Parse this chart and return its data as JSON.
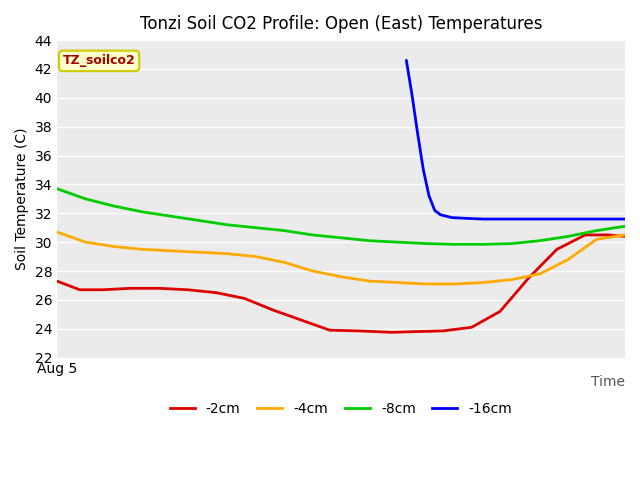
{
  "title": "Tonzi Soil CO2 Profile: Open (East) Temperatures",
  "ylabel": "Soil Temperature (C)",
  "xlabel": "Time",
  "xlabel_x_label": "Aug 5",
  "ylim": [
    22,
    44
  ],
  "yticks": [
    22,
    24,
    26,
    28,
    30,
    32,
    34,
    36,
    38,
    40,
    42,
    44
  ],
  "bg_color": "#ebebeb",
  "annotation_text": "TZ_soilco2",
  "annotation_color": "#aa0000",
  "annotation_bg": "#ffffcc",
  "annotation_border": "#cccc00",
  "series": {
    "-2cm": {
      "color": "#dd0000",
      "x": [
        0,
        0.04,
        0.08,
        0.13,
        0.18,
        0.23,
        0.28,
        0.33,
        0.38,
        0.43,
        0.48,
        0.53,
        0.56,
        0.59,
        0.63,
        0.68,
        0.73,
        0.78,
        0.83,
        0.88,
        0.93,
        0.97,
        1.0
      ],
      "y": [
        27.3,
        26.7,
        26.7,
        26.8,
        26.8,
        26.7,
        26.5,
        26.1,
        25.3,
        24.6,
        23.9,
        23.85,
        23.8,
        23.75,
        23.8,
        23.85,
        24.1,
        25.2,
        27.5,
        29.5,
        30.5,
        30.5,
        30.4
      ]
    },
    "-4cm": {
      "color": "#ffaa00",
      "x": [
        0,
        0.05,
        0.1,
        0.15,
        0.2,
        0.25,
        0.3,
        0.35,
        0.4,
        0.45,
        0.5,
        0.55,
        0.6,
        0.65,
        0.7,
        0.75,
        0.8,
        0.85,
        0.9,
        0.95,
        1.0
      ],
      "y": [
        30.7,
        30.0,
        29.7,
        29.5,
        29.4,
        29.3,
        29.2,
        29.0,
        28.6,
        28.0,
        27.6,
        27.3,
        27.2,
        27.1,
        27.1,
        27.2,
        27.4,
        27.8,
        28.8,
        30.2,
        30.5
      ]
    },
    "-8cm": {
      "color": "#00cc00",
      "x": [
        0,
        0.05,
        0.1,
        0.15,
        0.2,
        0.25,
        0.3,
        0.35,
        0.4,
        0.45,
        0.5,
        0.55,
        0.6,
        0.65,
        0.7,
        0.75,
        0.8,
        0.85,
        0.9,
        0.95,
        1.0
      ],
      "y": [
        33.7,
        33.0,
        32.5,
        32.1,
        31.8,
        31.5,
        31.2,
        31.0,
        30.8,
        30.5,
        30.3,
        30.1,
        30.0,
        29.9,
        29.85,
        29.85,
        29.9,
        30.1,
        30.4,
        30.8,
        31.1
      ]
    },
    "-16cm": {
      "color": "#0000ff",
      "x": [
        0.615,
        0.625,
        0.635,
        0.645,
        0.655,
        0.665,
        0.675,
        0.685,
        0.695,
        0.72,
        0.75,
        0.8,
        0.85,
        0.9,
        0.95,
        1.0
      ],
      "y": [
        42.6,
        40.2,
        37.5,
        35.0,
        33.2,
        32.2,
        31.9,
        31.8,
        31.7,
        31.65,
        31.6,
        31.6,
        31.6,
        31.6,
        31.6,
        31.6
      ]
    }
  },
  "legend": [
    {
      "label": "-2cm",
      "color": "#dd0000"
    },
    {
      "label": "-4cm",
      "color": "#ffaa00"
    },
    {
      "label": "-8cm",
      "color": "#00cc00"
    },
    {
      "label": "-16cm",
      "color": "#0000ff"
    }
  ]
}
